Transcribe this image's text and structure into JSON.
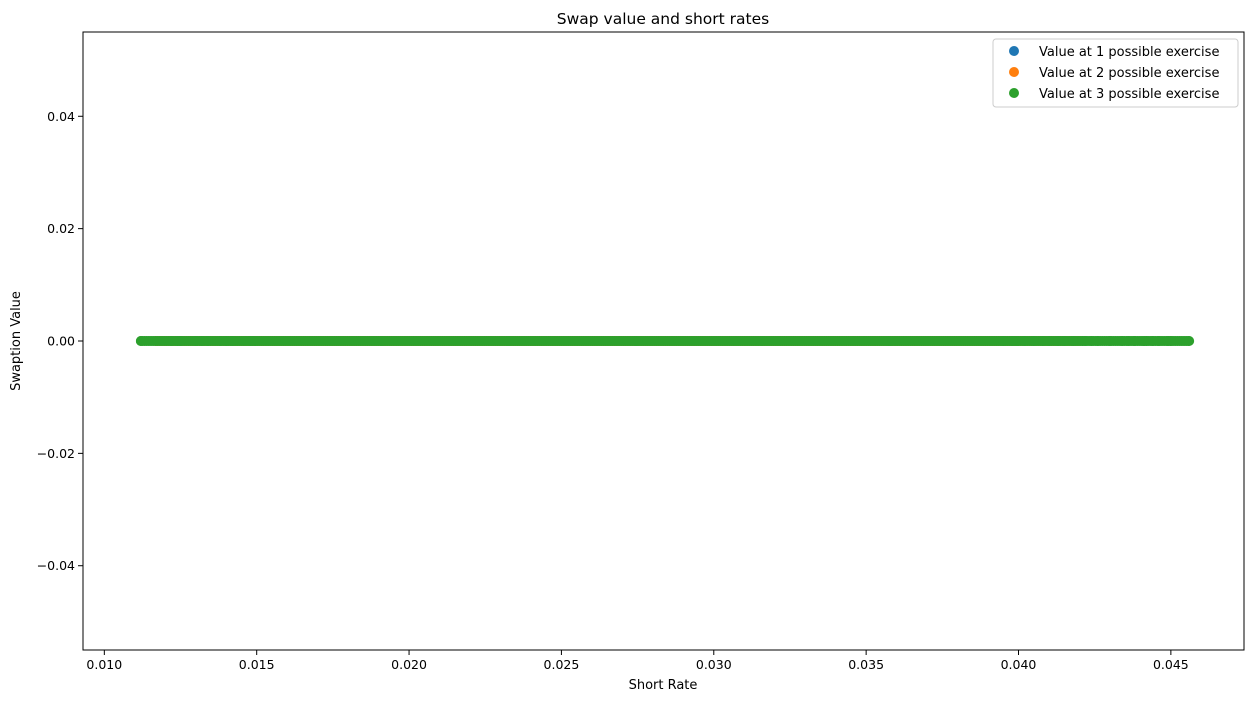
{
  "chart_data": {
    "type": "scatter",
    "title": "Swap value and short rates",
    "xlabel": "Short Rate",
    "ylabel": "Swaption Value",
    "xlim": [
      0.0093,
      0.0474
    ],
    "ylim": [
      -0.055,
      0.055
    ],
    "x_ticks": [
      "0.010",
      "0.015",
      "0.020",
      "0.025",
      "0.030",
      "0.035",
      "0.040",
      "0.045"
    ],
    "y_ticks": [
      "−0.04",
      "−0.02",
      "0.00",
      "0.02",
      "0.04"
    ],
    "x_tick_values": [
      0.01,
      0.015,
      0.02,
      0.025,
      0.03,
      0.035,
      0.04,
      0.045
    ],
    "y_tick_values": [
      -0.04,
      -0.02,
      0.0,
      0.02,
      0.04
    ],
    "grid": false,
    "legend_position": "top-right",
    "series": [
      {
        "name": "Value at 1 possible exercise",
        "color": "#1f77b4",
        "x_range": [
          0.014,
          0.04
        ],
        "y": 0.0,
        "notes_points": "dense band"
      },
      {
        "name": "Value at 2 possible exercise",
        "color": "#ff7f0e",
        "x_range": [
          0.0117,
          0.042
        ],
        "y": 0.0,
        "outliers": [
          0.0117,
          0.012,
          0.0128,
          0.0136,
          0.0145,
          0.0147,
          0.0152,
          0.016,
          0.0165,
          0.0172,
          0.018
        ]
      },
      {
        "name": "Value at 3 possible exercise",
        "color": "#2ca02c",
        "x_range": [
          0.0112,
          0.0456
        ],
        "y": 0.0,
        "outliers": [
          0.0112,
          0.0122,
          0.0124,
          0.0125,
          0.013,
          0.0132,
          0.0134,
          0.0138,
          0.014,
          0.0142,
          0.0148,
          0.0395,
          0.0398,
          0.0402,
          0.0405,
          0.0408,
          0.041,
          0.0413,
          0.0415,
          0.0418,
          0.0421,
          0.0422,
          0.0424,
          0.0426,
          0.043,
          0.0434,
          0.0436,
          0.0438,
          0.0442,
          0.0444,
          0.0446,
          0.0449,
          0.045,
          0.0456
        ]
      }
    ]
  }
}
